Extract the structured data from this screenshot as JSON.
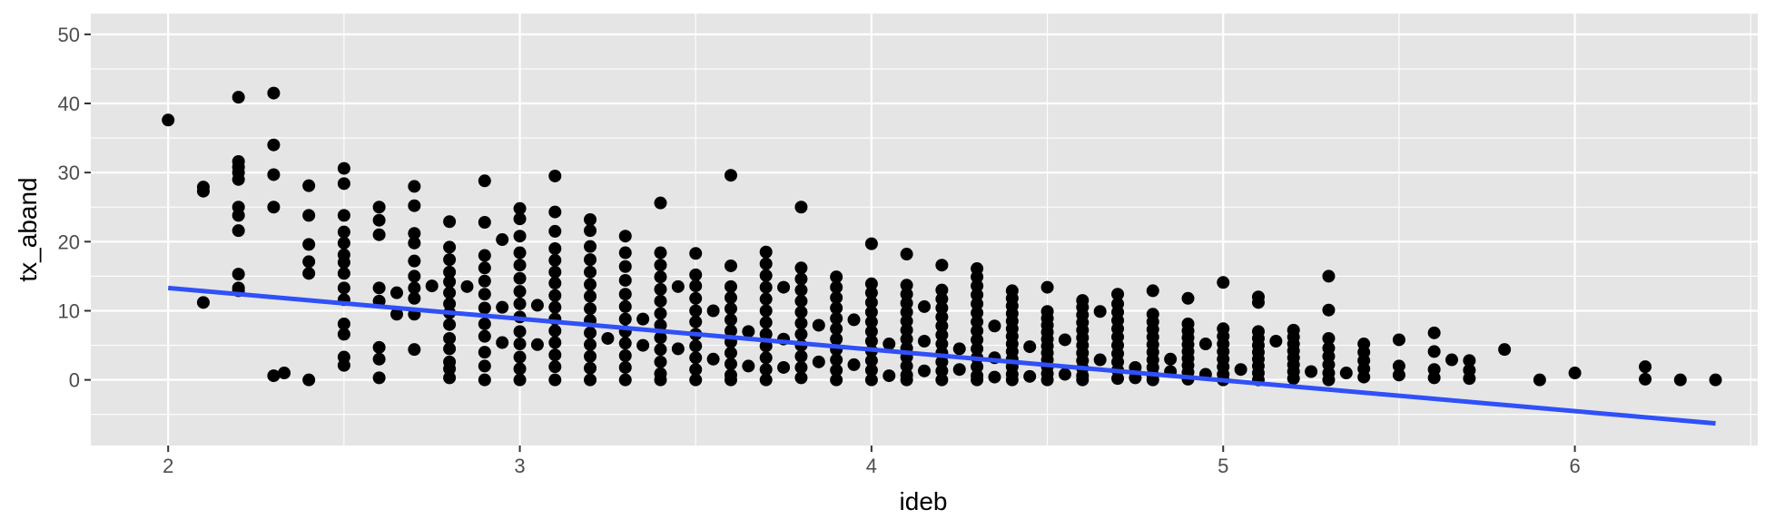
{
  "chart_data": {
    "type": "scatter",
    "title": "",
    "xlabel": "ideb",
    "ylabel": "tx_aband",
    "xlim": [
      1.78,
      6.52
    ],
    "ylim": [
      -9.5,
      53
    ],
    "x_ticks": [
      2,
      3,
      4,
      5,
      6
    ],
    "y_ticks": [
      0,
      10,
      20,
      30,
      40,
      50
    ],
    "grid": true,
    "legend": "none",
    "colors": {
      "panel_background": "#e5e5e5",
      "grid": "#ffffff",
      "points": "#000000",
      "trend_line": "#3050f8"
    },
    "trend_line": {
      "type": "linear",
      "points": [
        [
          2.0,
          13.3
        ],
        [
          6.4,
          -6.3
        ]
      ]
    },
    "columns": [
      {
        "x": 2.0,
        "y": [
          37.6
        ]
      },
      {
        "x": 2.1,
        "y": [
          27.9,
          27.3,
          11.2
        ]
      },
      {
        "x": 2.2,
        "y": [
          40.9,
          31.6,
          30.8,
          30.0,
          29.0,
          25.0,
          23.8,
          21.6,
          15.3,
          13.3,
          12.9
        ]
      },
      {
        "x": 2.3,
        "y": [
          41.5,
          34.0,
          29.7,
          25.0,
          0.6
        ]
      },
      {
        "x": 2.33,
        "y": [
          1.0
        ]
      },
      {
        "x": 2.4,
        "y": [
          28.1,
          23.8,
          19.6,
          17.1,
          15.4,
          0.0
        ]
      },
      {
        "x": 2.5,
        "y": [
          30.6,
          28.4,
          23.8,
          21.4,
          19.8,
          18.1,
          17.0,
          15.4,
          13.3,
          11.6,
          8.1,
          6.6,
          3.3,
          2.1
        ]
      },
      {
        "x": 2.6,
        "y": [
          25.0,
          23.1,
          21.0,
          13.3,
          11.4,
          4.7,
          3.0,
          0.3
        ]
      },
      {
        "x": 2.65,
        "y": [
          12.6,
          9.5
        ]
      },
      {
        "x": 2.7,
        "y": [
          28.0,
          25.2,
          21.2,
          19.8,
          17.2,
          15.0,
          13.3,
          11.8,
          9.5,
          4.4
        ]
      },
      {
        "x": 2.75,
        "y": [
          13.6
        ]
      },
      {
        "x": 2.8,
        "y": [
          22.9,
          19.2,
          17.4,
          15.6,
          14.2,
          12.6,
          11.0,
          9.7,
          8.0,
          6.0,
          4.5,
          2.6,
          1.6,
          0.3
        ]
      },
      {
        "x": 2.85,
        "y": [
          13.5
        ]
      },
      {
        "x": 2.9,
        "y": [
          28.8,
          22.8,
          18.0,
          16.2,
          14.3,
          12.4,
          10.4,
          8.1,
          6.3,
          4.0,
          2.0,
          0.0
        ]
      },
      {
        "x": 2.95,
        "y": [
          20.3,
          10.5,
          5.4
        ]
      },
      {
        "x": 3.0,
        "y": [
          24.8,
          23.3,
          20.8,
          18.4,
          16.6,
          14.7,
          12.8,
          11.0,
          9.1,
          7.0,
          5.2,
          3.3,
          1.6,
          0.0
        ]
      },
      {
        "x": 3.05,
        "y": [
          10.8,
          5.1
        ]
      },
      {
        "x": 3.1,
        "y": [
          29.5,
          24.3,
          21.5,
          19.0,
          17.3,
          15.6,
          14.0,
          12.2,
          10.5,
          8.8,
          7.1,
          5.4,
          3.6,
          1.9,
          0.0
        ]
      },
      {
        "x": 3.2,
        "y": [
          23.2,
          21.6,
          19.3,
          17.4,
          15.6,
          13.8,
          12.1,
          10.3,
          8.6,
          6.8,
          5.1,
          3.4,
          1.7,
          0.0
        ]
      },
      {
        "x": 3.25,
        "y": [
          6.0
        ]
      },
      {
        "x": 3.3,
        "y": [
          20.8,
          18.4,
          16.4,
          14.4,
          12.4,
          10.6,
          8.8,
          7.0,
          5.3,
          3.5,
          1.8,
          0.0
        ]
      },
      {
        "x": 3.35,
        "y": [
          8.8,
          5.0
        ]
      },
      {
        "x": 3.4,
        "y": [
          25.6,
          18.4,
          16.6,
          14.9,
          13.1,
          11.4,
          9.6,
          7.9,
          6.1,
          4.4,
          2.6,
          0.9,
          0.0
        ]
      },
      {
        "x": 3.45,
        "y": [
          13.5,
          4.5
        ]
      },
      {
        "x": 3.5,
        "y": [
          18.3,
          15.2,
          13.6,
          11.8,
          10.0,
          8.4,
          6.6,
          4.9,
          3.2,
          1.5,
          0.0
        ]
      },
      {
        "x": 3.55,
        "y": [
          10.0,
          3.0
        ]
      },
      {
        "x": 3.6,
        "y": [
          29.6,
          16.5,
          13.5,
          11.9,
          10.3,
          8.7,
          7.1,
          5.5,
          3.9,
          2.3,
          0.7,
          0.0
        ]
      },
      {
        "x": 3.65,
        "y": [
          7.0,
          2.0
        ]
      },
      {
        "x": 3.7,
        "y": [
          18.5,
          16.8,
          15.1,
          13.4,
          11.7,
          10.0,
          8.3,
          6.6,
          4.9,
          3.2,
          1.5,
          0.0
        ]
      },
      {
        "x": 3.75,
        "y": [
          13.4,
          5.9,
          1.8
        ]
      },
      {
        "x": 3.8,
        "y": [
          25.0,
          16.2,
          14.6,
          13.0,
          11.4,
          9.8,
          8.2,
          6.6,
          5.0,
          3.4,
          1.8,
          0.3
        ]
      },
      {
        "x": 3.85,
        "y": [
          7.9,
          2.6
        ]
      },
      {
        "x": 3.9,
        "y": [
          14.9,
          13.4,
          11.9,
          10.4,
          8.9,
          7.4,
          5.9,
          4.4,
          2.9,
          1.4,
          0.0
        ]
      },
      {
        "x": 3.95,
        "y": [
          8.7,
          2.2
        ]
      },
      {
        "x": 4.0,
        "y": [
          19.7,
          13.9,
          12.6,
          11.2,
          9.8,
          8.4,
          7.0,
          5.6,
          4.2,
          2.8,
          1.4,
          0.0
        ]
      },
      {
        "x": 4.05,
        "y": [
          5.2,
          0.6
        ]
      },
      {
        "x": 4.1,
        "y": [
          18.2,
          13.7,
          12.4,
          11.1,
          9.8,
          8.5,
          7.2,
          5.9,
          4.6,
          3.3,
          2.0,
          0.7,
          0.0
        ]
      },
      {
        "x": 4.15,
        "y": [
          10.6,
          5.6,
          1.3
        ]
      },
      {
        "x": 4.2,
        "y": [
          16.6,
          13.0,
          11.7,
          10.4,
          9.1,
          7.8,
          6.5,
          5.2,
          3.9,
          2.6,
          1.3,
          0.0
        ]
      },
      {
        "x": 4.25,
        "y": [
          4.5,
          1.5
        ]
      },
      {
        "x": 4.3,
        "y": [
          16.1,
          14.9,
          13.6,
          12.3,
          11.0,
          9.7,
          8.4,
          7.1,
          5.8,
          4.5,
          3.2,
          1.9,
          0.6,
          0.0
        ]
      },
      {
        "x": 4.35,
        "y": [
          7.8,
          3.2,
          0.4
        ]
      },
      {
        "x": 4.4,
        "y": [
          12.9,
          11.8,
          10.7,
          9.6,
          8.5,
          7.4,
          6.3,
          5.2,
          4.1,
          3.0,
          1.9,
          0.8,
          0.0
        ]
      },
      {
        "x": 4.45,
        "y": [
          4.8,
          0.5
        ]
      },
      {
        "x": 4.5,
        "y": [
          13.4,
          9.9,
          8.9,
          7.9,
          6.9,
          5.9,
          4.9,
          3.9,
          2.9,
          1.9,
          0.9,
          0.0
        ]
      },
      {
        "x": 4.55,
        "y": [
          5.8,
          0.8
        ]
      },
      {
        "x": 4.6,
        "y": [
          11.5,
          10.5,
          9.4,
          8.3,
          7.2,
          6.1,
          5.0,
          3.9,
          2.8,
          1.7,
          0.6,
          0.0
        ]
      },
      {
        "x": 4.65,
        "y": [
          9.9,
          2.9
        ]
      },
      {
        "x": 4.7,
        "y": [
          12.4,
          11.0,
          9.8,
          8.6,
          7.4,
          6.2,
          5.0,
          3.8,
          2.6,
          1.4,
          0.2
        ]
      },
      {
        "x": 4.75,
        "y": [
          1.8,
          0.3
        ]
      },
      {
        "x": 4.8,
        "y": [
          12.9,
          9.5,
          8.4,
          7.3,
          6.2,
          5.1,
          4.0,
          2.9,
          1.8,
          0.7,
          0.0
        ]
      },
      {
        "x": 4.85,
        "y": [
          3.0,
          1.2
        ]
      },
      {
        "x": 4.9,
        "y": [
          11.8,
          8.1,
          7.1,
          6.1,
          5.1,
          4.1,
          3.1,
          2.1,
          1.1,
          0.1
        ]
      },
      {
        "x": 4.95,
        "y": [
          5.2,
          0.8
        ]
      },
      {
        "x": 5.0,
        "y": [
          14.1,
          7.4,
          6.3,
          5.2,
          4.1,
          3.0,
          1.9,
          0.8,
          0.0
        ]
      },
      {
        "x": 5.05,
        "y": [
          1.5
        ]
      },
      {
        "x": 5.1,
        "y": [
          12.0,
          11.2,
          7.0,
          6.0,
          5.0,
          4.0,
          3.0,
          2.0,
          1.0,
          0.0
        ]
      },
      {
        "x": 5.15,
        "y": [
          5.6
        ]
      },
      {
        "x": 5.2,
        "y": [
          7.2,
          6.2,
          5.2,
          4.2,
          3.2,
          2.2,
          1.2,
          0.2
        ]
      },
      {
        "x": 5.25,
        "y": [
          1.2
        ]
      },
      {
        "x": 5.3,
        "y": [
          15.0,
          10.1,
          6.0,
          4.6,
          3.4,
          2.2,
          1.0,
          0.0
        ]
      },
      {
        "x": 5.35,
        "y": [
          1.0
        ]
      },
      {
        "x": 5.4,
        "y": [
          5.2,
          4.0,
          2.8,
          1.6,
          0.4
        ]
      },
      {
        "x": 5.5,
        "y": [
          5.8,
          2.0,
          0.7
        ]
      },
      {
        "x": 5.6,
        "y": [
          6.8,
          4.1,
          1.5,
          0.3
        ]
      },
      {
        "x": 5.65,
        "y": [
          2.9
        ]
      },
      {
        "x": 5.7,
        "y": [
          2.8,
          1.4,
          0.2
        ]
      },
      {
        "x": 5.8,
        "y": [
          4.4
        ]
      },
      {
        "x": 5.9,
        "y": [
          0.0
        ]
      },
      {
        "x": 6.0,
        "y": [
          1.0
        ]
      },
      {
        "x": 6.2,
        "y": [
          1.9,
          0.1
        ]
      },
      {
        "x": 6.3,
        "y": [
          0.0
        ]
      },
      {
        "x": 6.4,
        "y": [
          0.0
        ]
      }
    ]
  }
}
